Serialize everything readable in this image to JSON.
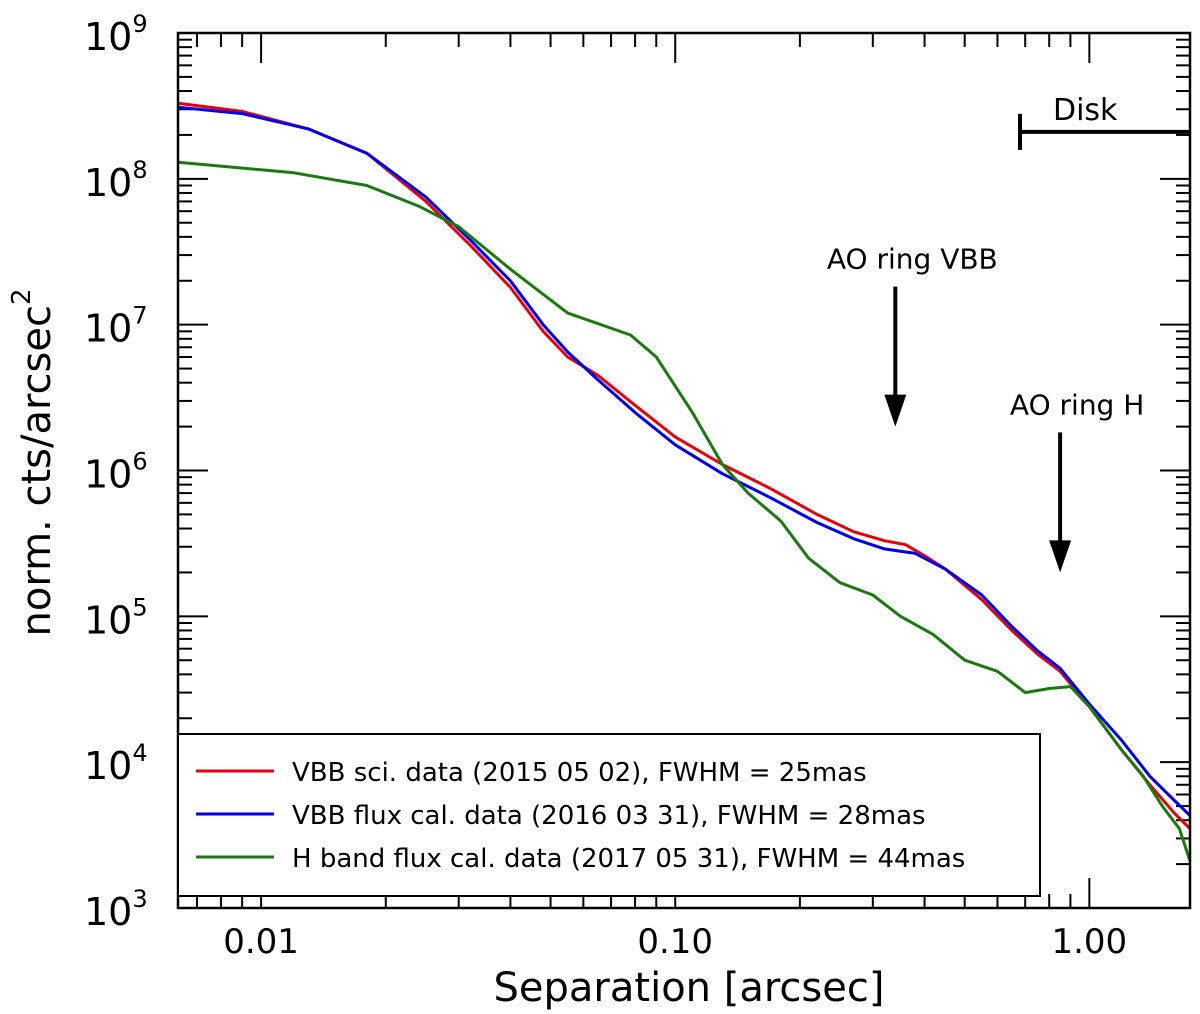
{
  "chart_data": {
    "type": "line",
    "title": "",
    "xlabel": "Separation [arcsec]",
    "ylabel": "norm. cts/arcsec",
    "ylabel_superscript": "2",
    "xscale": "log",
    "yscale": "log",
    "xlim": [
      0.0063,
      1.75
    ],
    "ylim": [
      1000,
      1000000000
    ],
    "grid": false,
    "x_tick_labels": [
      {
        "value": 0.01,
        "label": "0.01"
      },
      {
        "value": 0.1,
        "label": "0.10"
      },
      {
        "value": 1.0,
        "label": "1.00"
      }
    ],
    "y_tick_labels": [
      {
        "value": 1000,
        "base": "10",
        "exp": "3"
      },
      {
        "value": 10000,
        "base": "10",
        "exp": "4"
      },
      {
        "value": 100000,
        "base": "10",
        "exp": "5"
      },
      {
        "value": 1000000,
        "base": "10",
        "exp": "6"
      },
      {
        "value": 10000000,
        "base": "10",
        "exp": "7"
      },
      {
        "value": 100000000,
        "base": "10",
        "exp": "8"
      },
      {
        "value": 1000000000,
        "base": "10",
        "exp": "9"
      }
    ],
    "legend_position": "bottom-left",
    "series": [
      {
        "name": "VBB sci. data (2015 05 02), FWHM = 25mas",
        "color": "#e8000b",
        "points": [
          [
            0.0063,
            330000000
          ],
          [
            0.009,
            290000000
          ],
          [
            0.013,
            220000000
          ],
          [
            0.018,
            150000000
          ],
          [
            0.025,
            70000000
          ],
          [
            0.032,
            35000000
          ],
          [
            0.04,
            18000000
          ],
          [
            0.048,
            9000000
          ],
          [
            0.055,
            6000000
          ],
          [
            0.065,
            4500000
          ],
          [
            0.08,
            2800000
          ],
          [
            0.1,
            1700000
          ],
          [
            0.13,
            1100000
          ],
          [
            0.17,
            750000
          ],
          [
            0.22,
            500000
          ],
          [
            0.27,
            380000
          ],
          [
            0.32,
            330000
          ],
          [
            0.36,
            310000
          ],
          [
            0.4,
            260000
          ],
          [
            0.45,
            210000
          ],
          [
            0.55,
            130000
          ],
          [
            0.65,
            80000
          ],
          [
            0.75,
            55000
          ],
          [
            0.85,
            42000
          ],
          [
            1.0,
            24000
          ],
          [
            1.2,
            12000
          ],
          [
            1.4,
            7000
          ],
          [
            1.6,
            4500
          ],
          [
            1.75,
            3500
          ]
        ]
      },
      {
        "name": "VBB flux cal. data (2016 03 31), FWHM = 28mas",
        "color": "#0000ee",
        "points": [
          [
            0.0063,
            310000000
          ],
          [
            0.009,
            280000000
          ],
          [
            0.013,
            220000000
          ],
          [
            0.018,
            150000000
          ],
          [
            0.025,
            75000000
          ],
          [
            0.032,
            38000000
          ],
          [
            0.04,
            20000000
          ],
          [
            0.048,
            10000000
          ],
          [
            0.055,
            6500000
          ],
          [
            0.065,
            4200000
          ],
          [
            0.08,
            2500000
          ],
          [
            0.1,
            1500000
          ],
          [
            0.13,
            950000
          ],
          [
            0.17,
            650000
          ],
          [
            0.22,
            440000
          ],
          [
            0.27,
            340000
          ],
          [
            0.32,
            290000
          ],
          [
            0.38,
            270000
          ],
          [
            0.45,
            210000
          ],
          [
            0.55,
            140000
          ],
          [
            0.65,
            85000
          ],
          [
            0.75,
            58000
          ],
          [
            0.85,
            44000
          ],
          [
            1.0,
            25000
          ],
          [
            1.2,
            14000
          ],
          [
            1.4,
            8000
          ],
          [
            1.6,
            5500
          ],
          [
            1.75,
            4300
          ]
        ]
      },
      {
        "name": "H band flux cal. data (2017 05 31), FWHM = 44mas",
        "color": "#1a7a0f",
        "points": [
          [
            0.0063,
            130000000
          ],
          [
            0.012,
            110000000
          ],
          [
            0.018,
            90000000
          ],
          [
            0.024,
            65000000
          ],
          [
            0.03,
            47000000
          ],
          [
            0.04,
            24000000
          ],
          [
            0.055,
            12000000
          ],
          [
            0.078,
            8500000
          ],
          [
            0.09,
            6000000
          ],
          [
            0.11,
            2500000
          ],
          [
            0.13,
            1100000
          ],
          [
            0.15,
            700000
          ],
          [
            0.18,
            450000
          ],
          [
            0.21,
            250000
          ],
          [
            0.25,
            170000
          ],
          [
            0.3,
            140000
          ],
          [
            0.35,
            100000
          ],
          [
            0.42,
            75000
          ],
          [
            0.5,
            50000
          ],
          [
            0.6,
            42000
          ],
          [
            0.7,
            30000
          ],
          [
            0.8,
            32000
          ],
          [
            0.9,
            33000
          ],
          [
            1.0,
            24000
          ],
          [
            1.2,
            12000
          ],
          [
            1.35,
            8000
          ],
          [
            1.5,
            5000
          ],
          [
            1.65,
            3500
          ],
          [
            1.75,
            2100
          ]
        ]
      }
    ],
    "annotations": [
      {
        "text": "Disk",
        "kind": "range_bar",
        "x_start": 0.68,
        "x_end": 1.75,
        "y": 210000000
      },
      {
        "text": "AO ring VBB",
        "kind": "arrow",
        "x": 0.34,
        "y_tip": 2000000
      },
      {
        "text": "AO ring H",
        "kind": "arrow",
        "x": 0.85,
        "y_tip": 200000
      }
    ]
  }
}
